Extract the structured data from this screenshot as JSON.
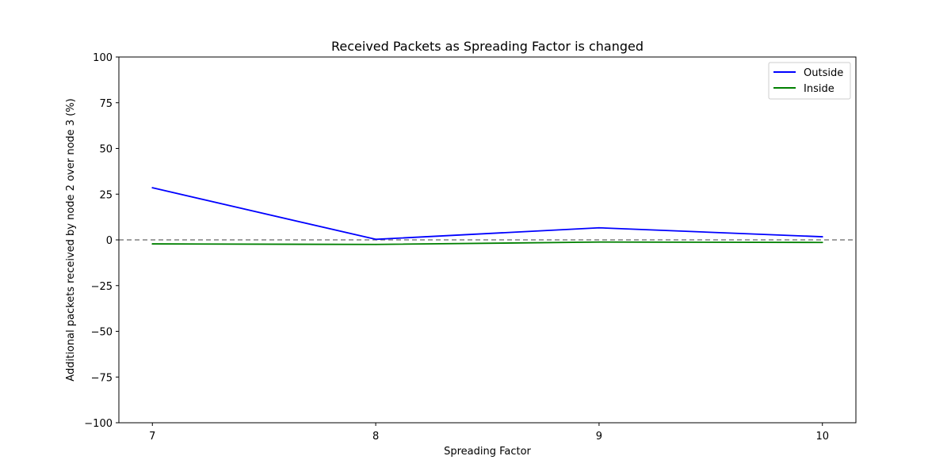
{
  "chart_data": {
    "type": "line",
    "title": "Received Packets as Spreading Factor is changed",
    "xlabel": "Spreading Factor",
    "ylabel": "Additional packets received by node 2 over node 3 (%)",
    "x": [
      7,
      8,
      9,
      10
    ],
    "x_ticks": [
      "7",
      "8",
      "9",
      "10"
    ],
    "xlim": [
      6.85,
      10.15
    ],
    "ylim": [
      -100,
      100
    ],
    "y_ticks": [
      100,
      75,
      50,
      25,
      0,
      -25,
      -50,
      -75,
      -100
    ],
    "y_tick_labels": [
      "100",
      "75",
      "50",
      "25",
      "0",
      "−25",
      "−50",
      "−75",
      "−100"
    ],
    "series": [
      {
        "name": "Outside",
        "color": "#0000ff",
        "values": [
          28.5,
          0.3,
          6.6,
          1.7
        ]
      },
      {
        "name": "Inside",
        "color": "#008000",
        "values": [
          -2.2,
          -2.5,
          -1.2,
          -1.4
        ]
      }
    ],
    "reference_line": {
      "y": 0,
      "style": "dashed",
      "color": "#808080"
    },
    "grid": false,
    "legend_position": "top-right"
  }
}
